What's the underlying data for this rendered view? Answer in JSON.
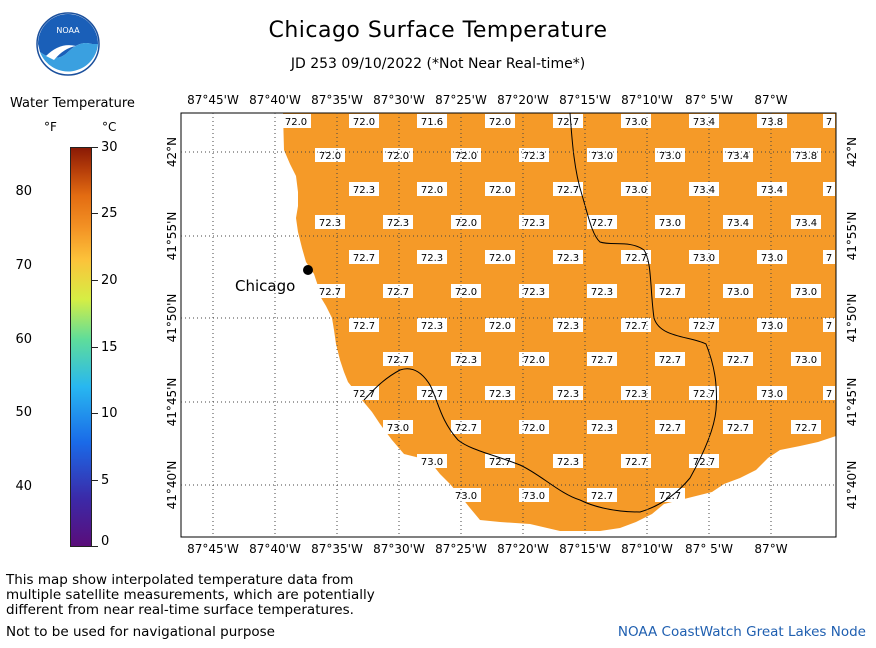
{
  "title": "Chicago Surface Temperature",
  "subtitle": "JD 253 09/10/2022 (*Not Near Real-time*)",
  "logo_text": "NOAA",
  "legend": {
    "title": "Water Temperature",
    "unit_f": "°F",
    "unit_c": "°C",
    "ticks_f": [
      "80",
      "70",
      "60",
      "50",
      "40"
    ],
    "ticks_c": [
      "30",
      "25",
      "20",
      "15",
      "10",
      "5",
      "0"
    ],
    "colormap": [
      "#5a0d7a",
      "#3b2aa8",
      "#1a6ae8",
      "#28b7f0",
      "#5fdd9a",
      "#d6ee44",
      "#fcc23a",
      "#f39224",
      "#e36c12",
      "#b23a09",
      "#8a1a05"
    ]
  },
  "axes": {
    "lon_labels": [
      "87°45'W",
      "87°40'W",
      "87°35'W",
      "87°30'W",
      "87°25'W",
      "87°20'W",
      "87°15'W",
      "87°10'W",
      "87° 5'W",
      "87°W"
    ],
    "lat_labels": [
      "42°N",
      "41°55'N",
      "41°50'N",
      "41°45'N",
      "41°40'N"
    ]
  },
  "city_label": "Chicago",
  "water_color": "#f59a28",
  "temperature_rows": [
    [
      "72.0",
      "72.0",
      "71.6",
      "72.0",
      "72.7",
      "73.0",
      "73.4",
      "73.8",
      "7"
    ],
    [
      "72.0",
      "72.0",
      "72.0",
      "72.3",
      "73.0",
      "73.0",
      "73.4",
      "73.8"
    ],
    [
      "72.3",
      "72.0",
      "72.0",
      "72.7",
      "73.0",
      "73.4",
      "73.4",
      "7"
    ],
    [
      "72.3",
      "72.3",
      "72.0",
      "72.3",
      "72.7",
      "73.0",
      "73.4",
      "73.4"
    ],
    [
      "72.7",
      "72.3",
      "72.0",
      "72.3",
      "72.7",
      "73.0",
      "73.0",
      "7"
    ],
    [
      "72.7",
      "72.7",
      "72.0",
      "72.3",
      "72.3",
      "72.7",
      "73.0",
      "73.0"
    ],
    [
      "72.7",
      "72.3",
      "72.0",
      "72.3",
      "72.7",
      "72.7",
      "73.0",
      "7"
    ],
    [
      "72.7",
      "72.3",
      "72.0",
      "72.7",
      "72.7",
      "72.7",
      "73.0"
    ],
    [
      "72.7",
      "72.7",
      "72.3",
      "72.3",
      "72.3",
      "72.7",
      "73.0",
      "7"
    ],
    [
      "73.0",
      "72.7",
      "72.0",
      "72.3",
      "72.7",
      "72.7",
      "72.7"
    ],
    [
      "73.0",
      "72.7",
      "72.3",
      "72.7",
      "72.7"
    ],
    [
      "73.0",
      "73.0",
      "72.7",
      "72.7"
    ]
  ],
  "footer": {
    "note_line1": "This map show interpolated temperature data from",
    "note_line2": "multiple satellite measurements, which are potentially",
    "note_line3": "different from near real-time surface temperatures.",
    "note2": "Not to be used for navigational purpose",
    "credit": "NOAA CoastWatch Great Lakes Node"
  }
}
